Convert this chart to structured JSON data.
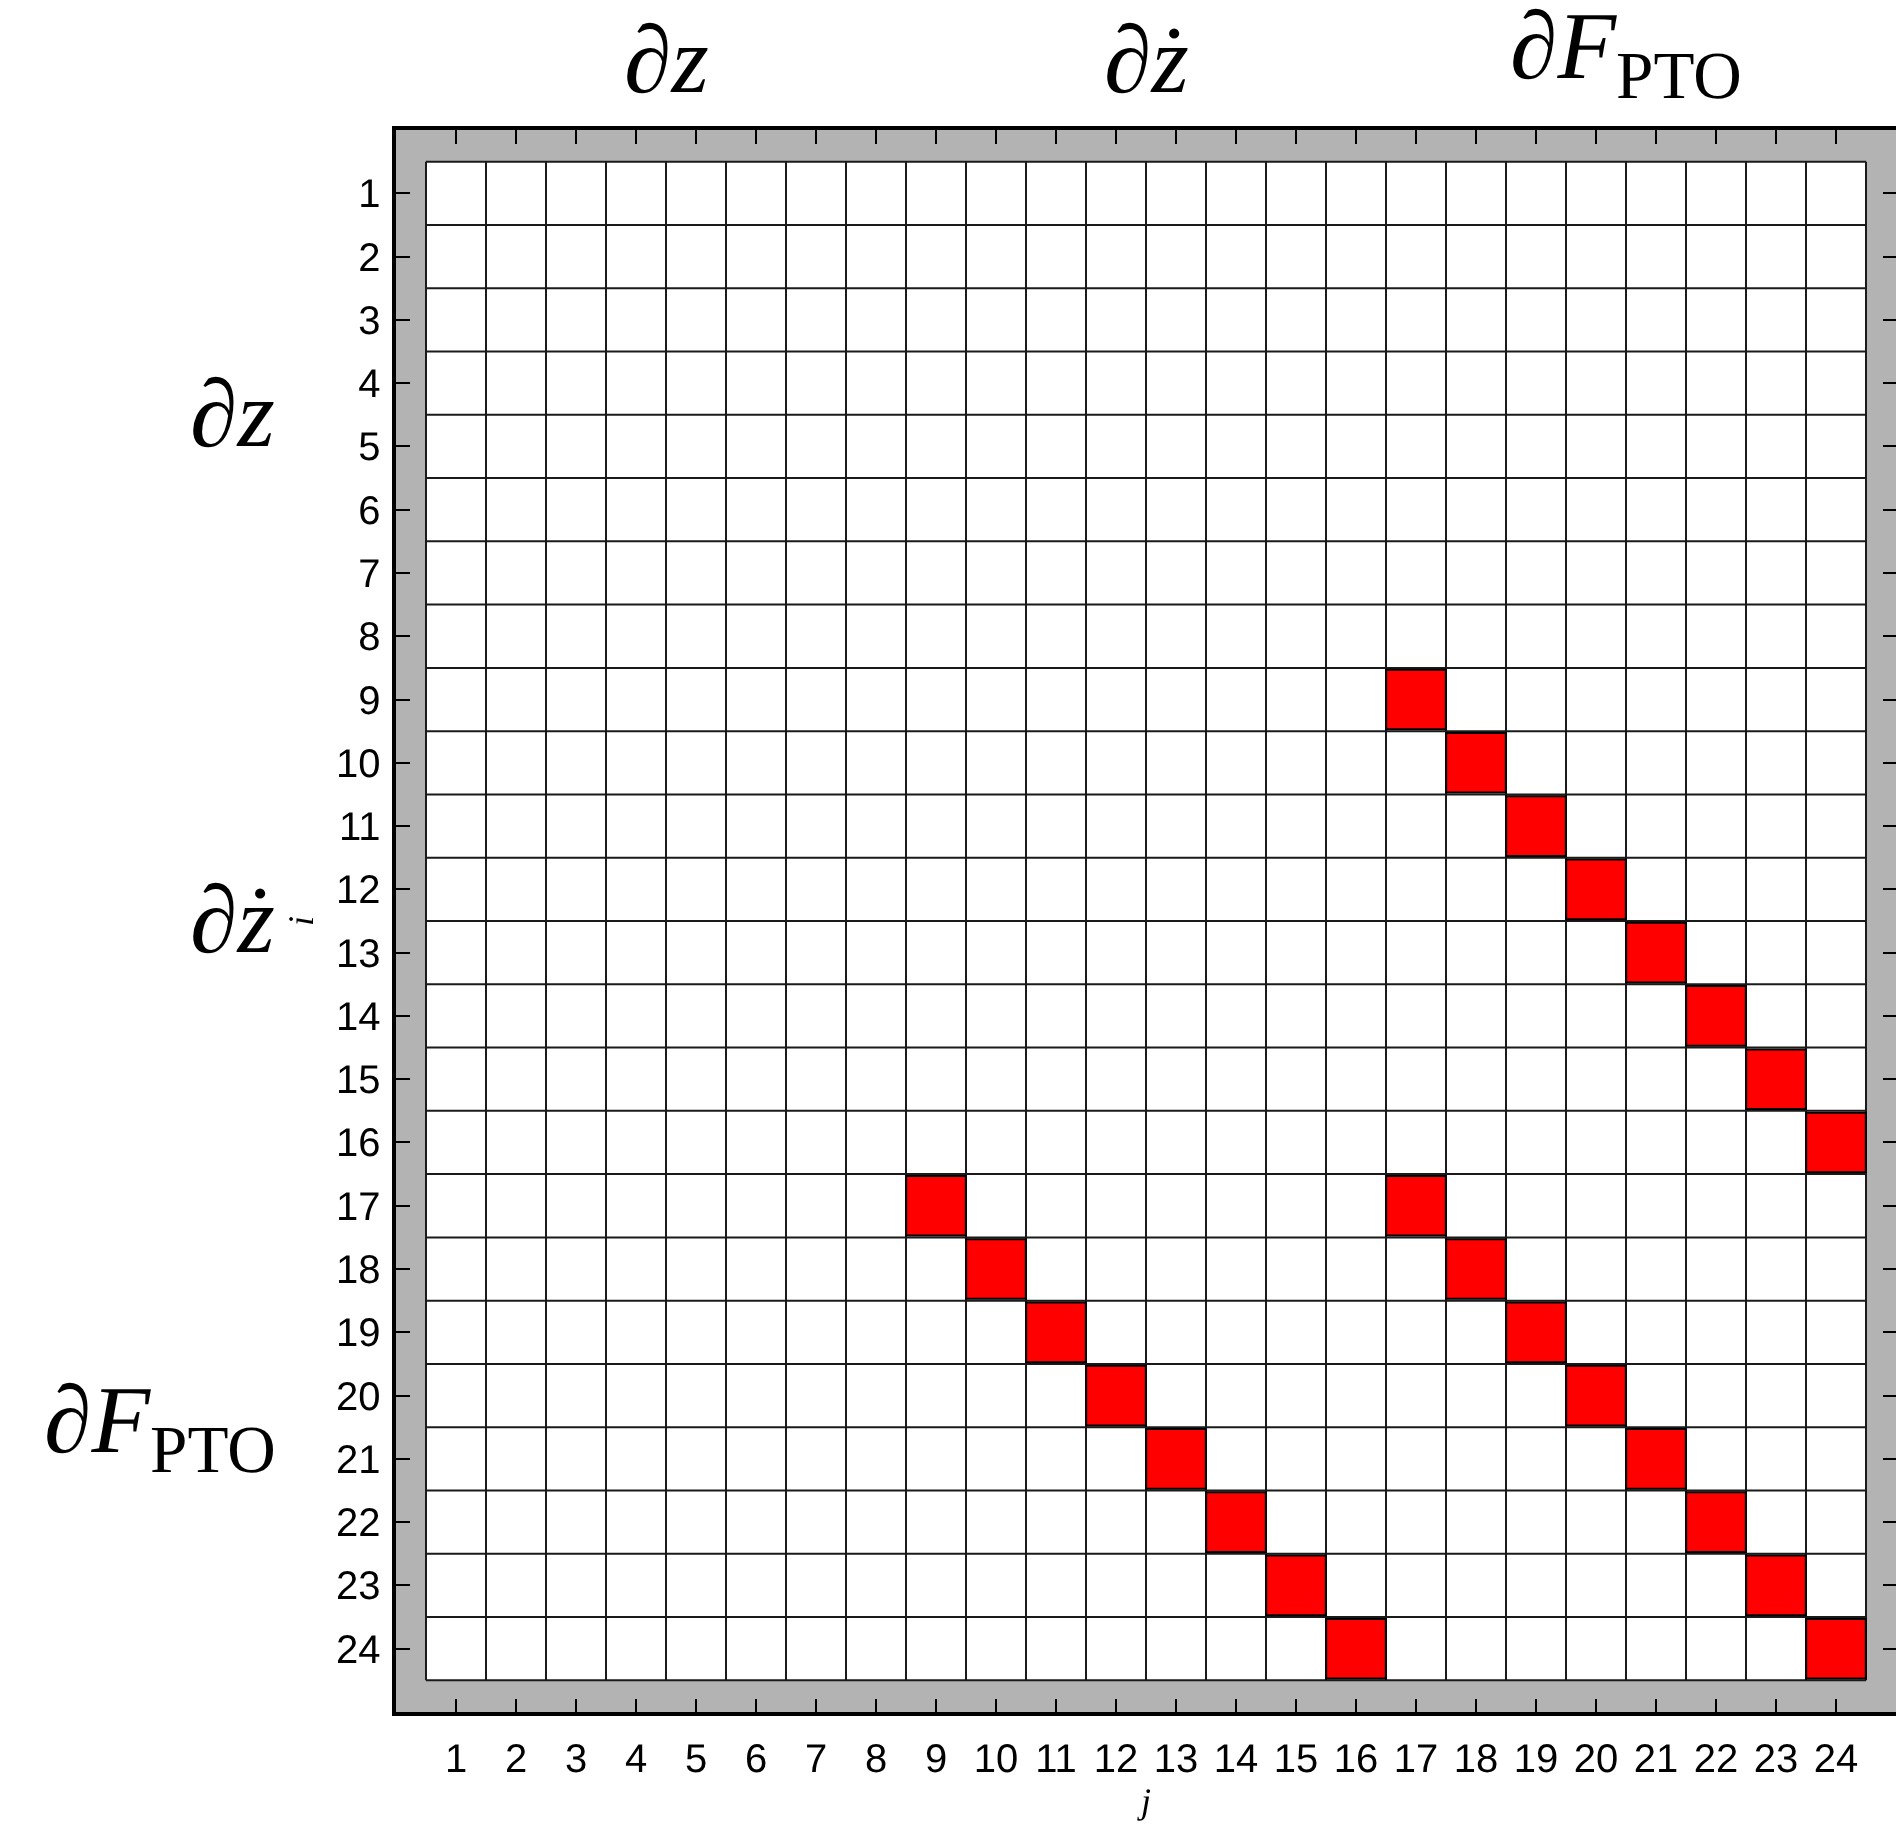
{
  "chart_data": {
    "type": "scatter",
    "xlabel": "j",
    "ylabel": "i",
    "annotations": [
      "∂z",
      "∂ż",
      "∂F$_{PTO}$",
      "∂z",
      "∂ż",
      "∂F$_{PTO}$"
    ],
    "x": [
      17,
      18,
      19,
      20,
      21,
      22,
      23,
      24,
      9,
      10,
      11,
      12,
      13,
      14,
      15,
      16,
      17,
      18,
      19,
      20,
      21,
      22,
      23,
      24
    ],
    "values": [
      9,
      10,
      11,
      12,
      13,
      14,
      15,
      16,
      17,
      18,
      19,
      20,
      21,
      22,
      23,
      24,
      17,
      18,
      19,
      20,
      21,
      22,
      23,
      24
    ],
    "color": "#ff0000",
    "marker": "square",
    "xlim": [
      0,
      25
    ],
    "ylim": [
      25,
      0
    ],
    "xticks": [
      1,
      2,
      3,
      4,
      5,
      6,
      7,
      8,
      9,
      10,
      11,
      12,
      13,
      14,
      15,
      16,
      17,
      18,
      19,
      20,
      21,
      22,
      23,
      24
    ],
    "yticks": [
      1,
      2,
      3,
      4,
      5,
      6,
      7,
      8,
      9,
      10,
      11,
      12,
      13,
      14,
      15,
      16,
      17,
      18,
      19,
      20,
      21,
      22,
      23,
      24
    ],
    "grid": true
  }
}
